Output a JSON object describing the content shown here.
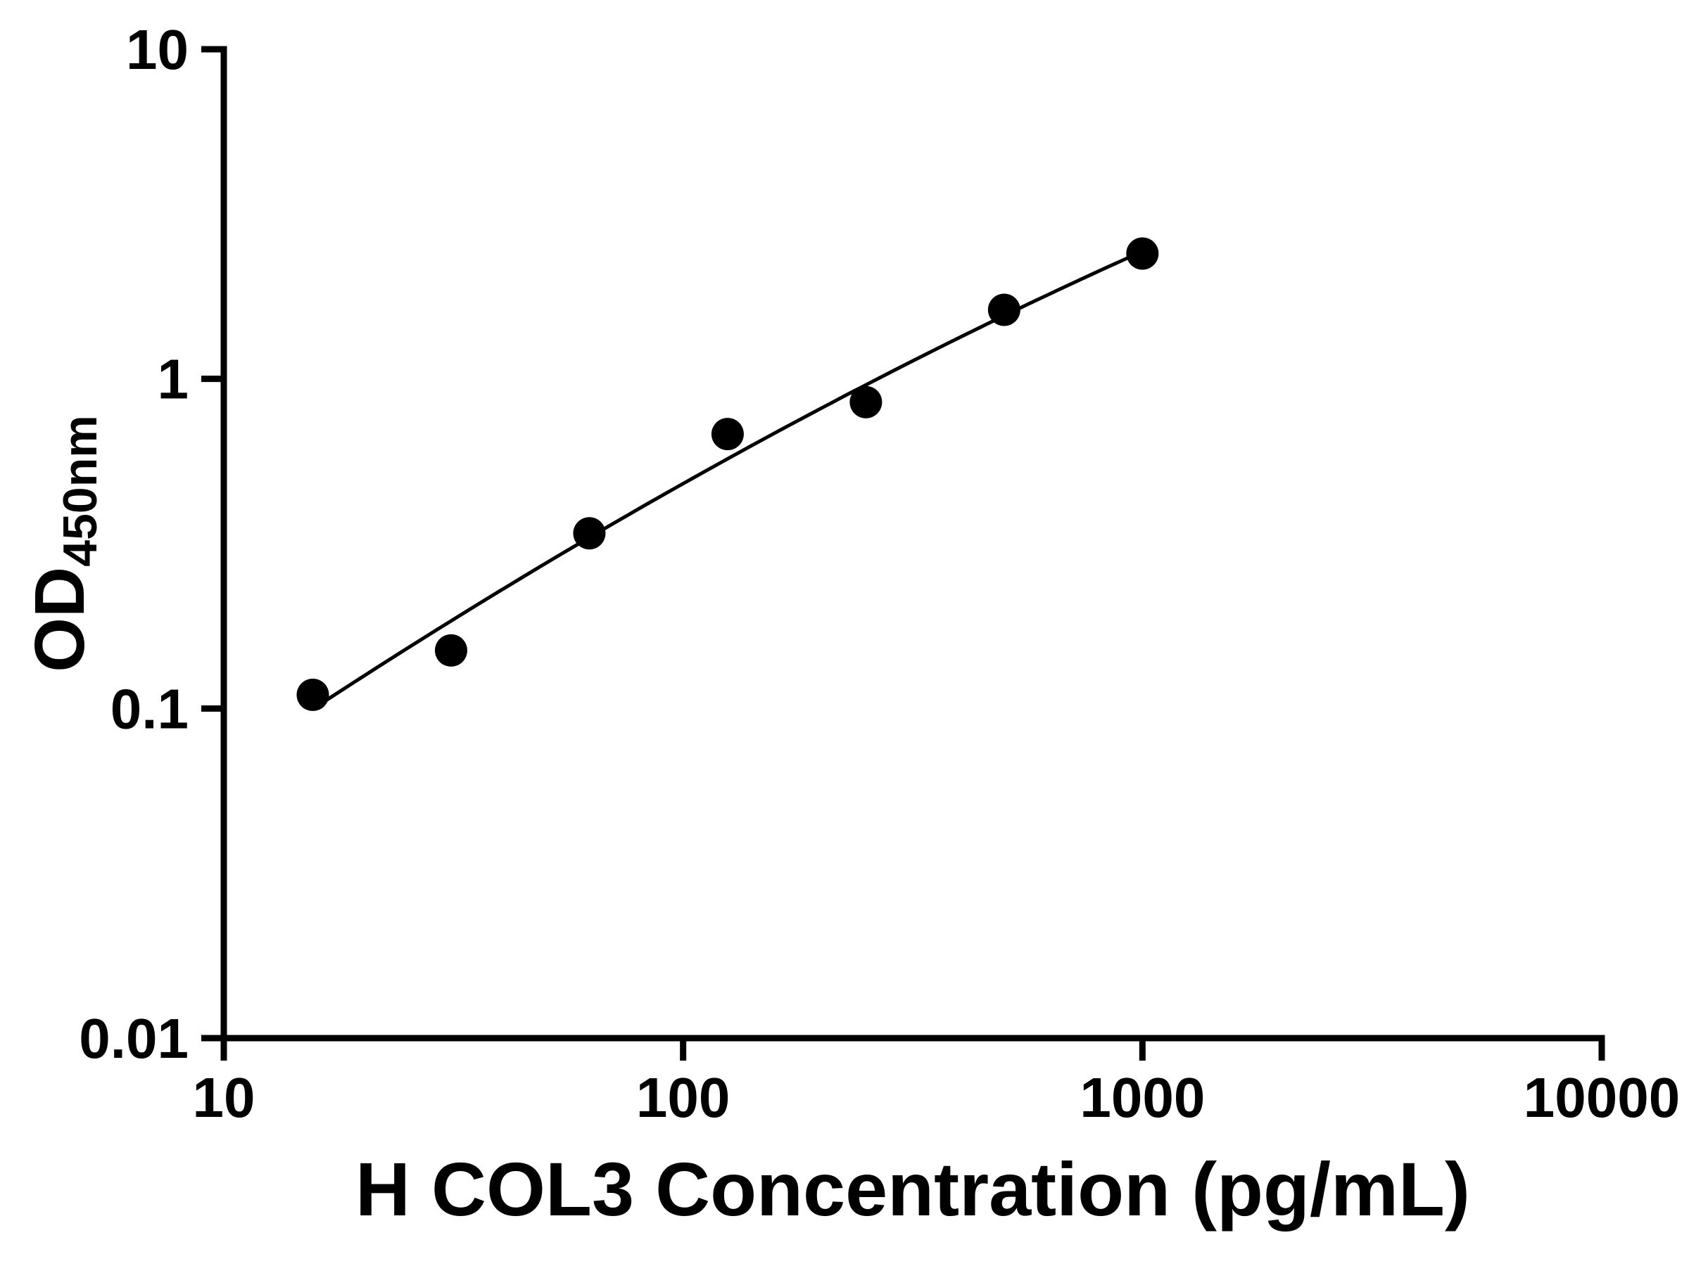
{
  "figure": {
    "background": "#ffffff"
  },
  "chart_data": {
    "type": "scatter",
    "title": "",
    "xlabel": "H COL3 Concentration (pg/mL)",
    "ylabel_main": "OD",
    "ylabel_sub": "450nm",
    "x_scale": "log",
    "y_scale": "log",
    "xlim": [
      10,
      10000
    ],
    "ylim": [
      0.01,
      10
    ],
    "x": [
      15.625,
      31.25,
      62.5,
      125,
      250,
      500,
      1000
    ],
    "y": [
      0.11,
      0.15,
      0.34,
      0.68,
      0.85,
      1.62,
      2.4
    ],
    "x_ticks": {
      "values": [
        10,
        100,
        1000,
        10000
      ],
      "labels": [
        "10",
        "100",
        "1000",
        "10000"
      ]
    },
    "y_ticks": {
      "values": [
        10,
        1,
        0.1,
        0.01
      ],
      "labels": [
        "10",
        "1",
        "0.1",
        "0.01"
      ]
    },
    "curve": "smooth-fit-through-points",
    "grid": false,
    "legend": null,
    "marker_color": "#000000",
    "line_color": "#000000"
  }
}
